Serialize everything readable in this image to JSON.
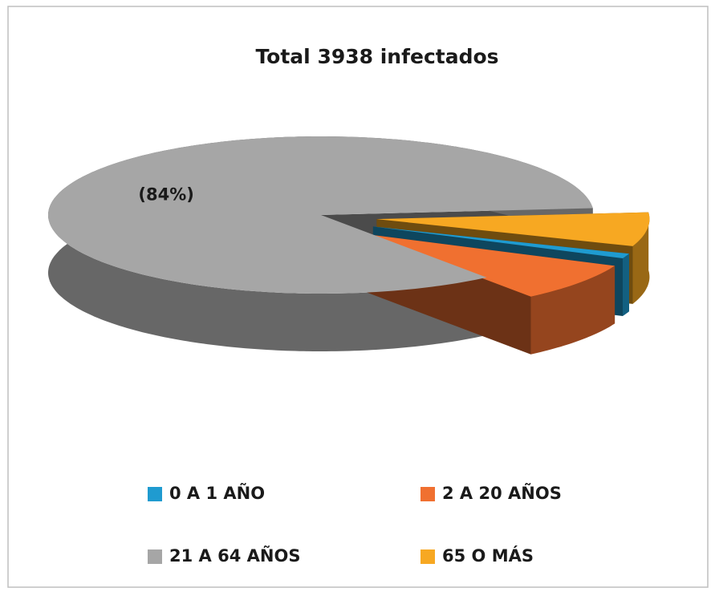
{
  "chart_data": {
    "type": "pie3d",
    "title": "Total 3938 infectados",
    "categories": [
      "0 A 1 AÑO",
      "2 A 20 AÑOS",
      "21 A 64 AÑOS",
      "65 O MÁS"
    ],
    "values": [
      1,
      8,
      84,
      7
    ],
    "value_labels": [
      null,
      null,
      "(84%)",
      null
    ],
    "colors": [
      "#1f9bd0",
      "#f07030",
      "#a6a6a6",
      "#f7a822"
    ]
  }
}
